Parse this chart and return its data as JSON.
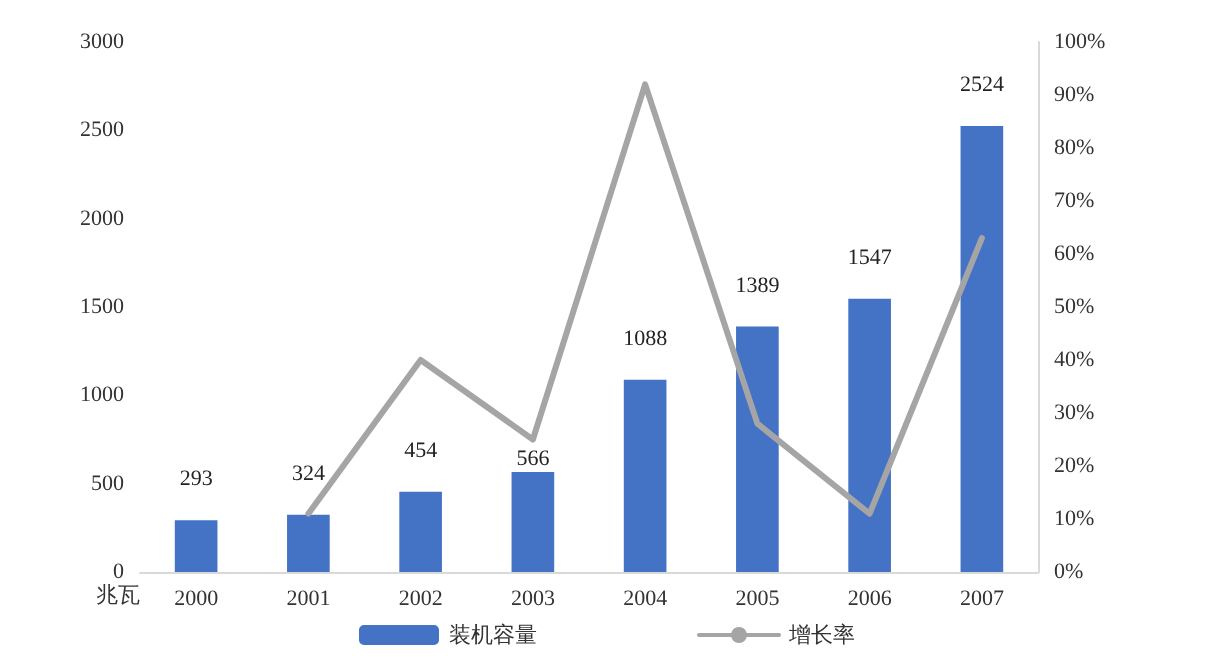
{
  "chart_data": {
    "type": "bar",
    "ylabel": "兆瓦",
    "categories": [
      "2000",
      "2001",
      "2002",
      "2003",
      "2004",
      "2005",
      "2006",
      "2007"
    ],
    "series": [
      {
        "name": "装机容量",
        "color": "#4472c4",
        "values": [
          293,
          324,
          454,
          566,
          1088,
          1389,
          1547,
          2524
        ],
        "value_labels": [
          "293",
          "324",
          "454",
          "566",
          "1088",
          "1389",
          "1547",
          "2524"
        ]
      },
      {
        "name": "增长率",
        "type": "line",
        "axis": "y2",
        "color": "#a5a5a5",
        "values": [
          null,
          11,
          40,
          25,
          92,
          28,
          11,
          63
        ]
      }
    ],
    "ylim": [
      0,
      3000
    ],
    "yticks": [
      0,
      500,
      1000,
      1500,
      2000,
      2500,
      3000
    ],
    "y2lim": [
      0,
      100
    ],
    "y2ticks": [
      {
        "value": 0,
        "label": "0%"
      },
      {
        "value": 10,
        "label": "10%"
      },
      {
        "value": 20,
        "label": "20%"
      },
      {
        "value": 30,
        "label": "30%"
      },
      {
        "value": 40,
        "label": "40%"
      },
      {
        "value": 50,
        "label": "50%"
      },
      {
        "value": 60,
        "label": "60%"
      },
      {
        "value": 70,
        "label": "70%"
      },
      {
        "value": 80,
        "label": "80%"
      },
      {
        "value": 90,
        "label": "90%"
      },
      {
        "value": 100,
        "label": "100%"
      }
    ],
    "grid": false,
    "legend": "bottom",
    "marker": "none"
  }
}
